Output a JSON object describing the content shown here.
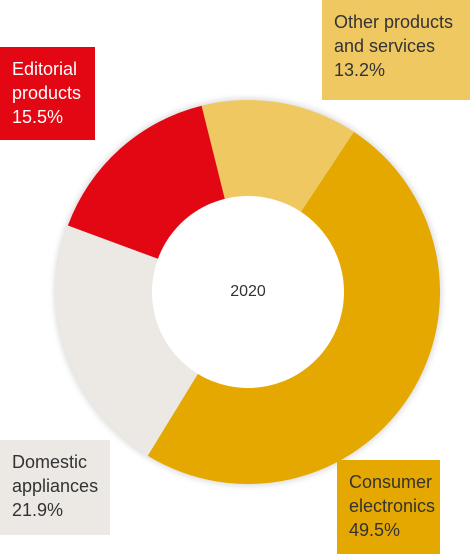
{
  "chart_data": {
    "type": "donut",
    "center_label": "2020",
    "categories": [
      "Other products and services",
      "Consumer electronics",
      "Domestic appliances",
      "Editorial products"
    ],
    "values": [
      13.2,
      49.5,
      21.9,
      15.5
    ],
    "value_labels": [
      "13.2%",
      "49.5%",
      "21.9%",
      "15.5%"
    ],
    "colors": [
      "#f0c862",
      "#e5a800",
      "#ece9e4",
      "#e30613"
    ]
  }
}
